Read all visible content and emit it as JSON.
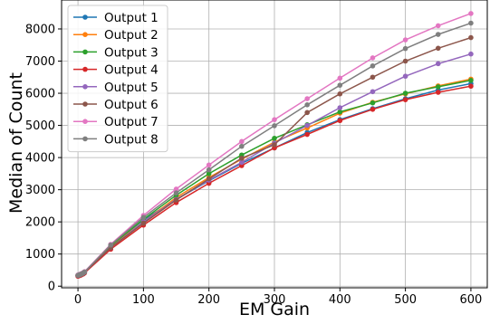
{
  "chart_data": {
    "type": "line",
    "title": "",
    "xlabel": "EM Gain",
    "ylabel": "Median of Count",
    "xlim": [
      -25,
      625
    ],
    "ylim": [
      -50,
      8900
    ],
    "x_ticks": [
      0,
      100,
      200,
      300,
      400,
      500,
      600
    ],
    "y_ticks": [
      0,
      1000,
      2000,
      3000,
      4000,
      5000,
      6000,
      7000,
      8000
    ],
    "grid": true,
    "legend_position": "top-left",
    "x": [
      0,
      2,
      4,
      6,
      8,
      10,
      50,
      100,
      150,
      200,
      250,
      300,
      350,
      400,
      450,
      500,
      550,
      600
    ],
    "series": [
      {
        "name": "Output 1",
        "color": "#1f77b4",
        "values": [
          330,
          345,
          360,
          380,
          400,
          430,
          1270,
          2060,
          2700,
          3280,
          3820,
          4300,
          4780,
          5180,
          5520,
          5830,
          6100,
          6300
        ]
      },
      {
        "name": "Output 2",
        "color": "#ff7f0e",
        "values": [
          330,
          345,
          360,
          380,
          400,
          430,
          1240,
          2000,
          2760,
          3380,
          3950,
          4480,
          4920,
          5380,
          5720,
          5980,
          6230,
          6440
        ]
      },
      {
        "name": "Output 3",
        "color": "#2ca02c",
        "values": [
          330,
          345,
          360,
          380,
          400,
          430,
          1260,
          2080,
          2830,
          3500,
          4080,
          4600,
          5020,
          5420,
          5700,
          6000,
          6200,
          6400
        ]
      },
      {
        "name": "Output 4",
        "color": "#d62728",
        "values": [
          310,
          325,
          340,
          360,
          380,
          410,
          1150,
          1900,
          2600,
          3200,
          3750,
          4300,
          4720,
          5150,
          5500,
          5800,
          6030,
          6220
        ]
      },
      {
        "name": "Output 5",
        "color": "#9467bd",
        "values": [
          330,
          345,
          360,
          380,
          400,
          430,
          1200,
          2000,
          2700,
          3300,
          3850,
          4450,
          5000,
          5550,
          6050,
          6530,
          6920,
          7220
        ]
      },
      {
        "name": "Output 6",
        "color": "#8c564b",
        "values": [
          330,
          345,
          360,
          380,
          400,
          430,
          1200,
          1960,
          2680,
          3340,
          3980,
          4400,
          5400,
          5980,
          6500,
          7000,
          7400,
          7730
        ]
      },
      {
        "name": "Output 7",
        "color": "#e377c2",
        "values": [
          350,
          365,
          380,
          400,
          420,
          450,
          1300,
          2200,
          3020,
          3770,
          4500,
          5180,
          5830,
          6470,
          7100,
          7660,
          8100,
          8480
        ]
      },
      {
        "name": "Output 8",
        "color": "#7f7f7f",
        "values": [
          340,
          355,
          370,
          390,
          410,
          440,
          1280,
          2140,
          2900,
          3620,
          4350,
          4990,
          5640,
          6250,
          6850,
          7390,
          7830,
          8180
        ]
      }
    ]
  }
}
